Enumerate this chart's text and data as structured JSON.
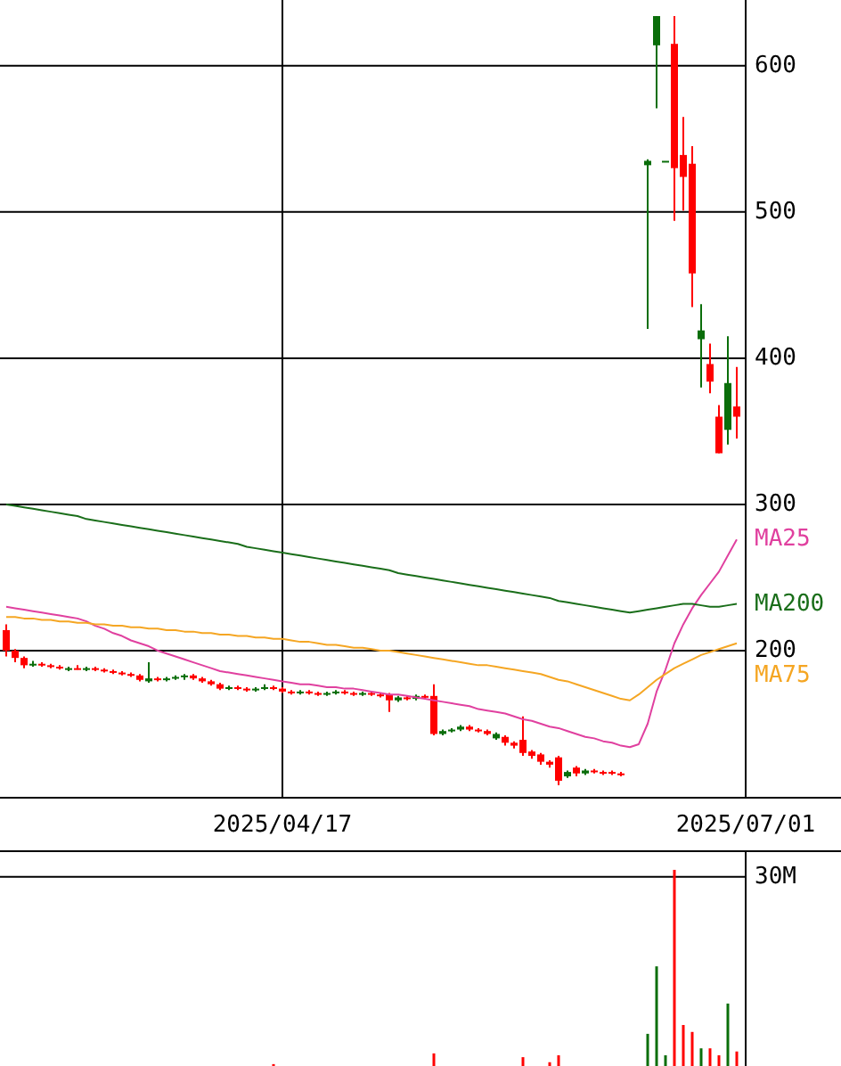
{
  "chart_data": [
    {
      "type": "candlestick",
      "categories": [
        null,
        null,
        null,
        null,
        null,
        null,
        null,
        null,
        null,
        null,
        null,
        null,
        null,
        null,
        null,
        null,
        null,
        null,
        null,
        null,
        null,
        null,
        null,
        null,
        null,
        null,
        null,
        null,
        null,
        null,
        null,
        "2025/04/17",
        null,
        null,
        null,
        null,
        null,
        null,
        null,
        null,
        null,
        null,
        null,
        null,
        null,
        null,
        null,
        null,
        null,
        null,
        null,
        null,
        null,
        null,
        null,
        null,
        null,
        null,
        null,
        null,
        null,
        null,
        null,
        null,
        null,
        null,
        null,
        null,
        null,
        null,
        null,
        null,
        null,
        null,
        null,
        null,
        null,
        null,
        null,
        null,
        null,
        null,
        null,
        "2025/07/01"
      ],
      "ohlc": [
        [
          214,
          218,
          196,
          200
        ],
        [
          200,
          201,
          192,
          195
        ],
        [
          195,
          196,
          188,
          190
        ],
        [
          190,
          193,
          189,
          191
        ],
        [
          191,
          192,
          189,
          190
        ],
        [
          190,
          191,
          188,
          189
        ],
        [
          189,
          190,
          187,
          188
        ],
        [
          187,
          189,
          186,
          188
        ],
        [
          188,
          190,
          187,
          187
        ],
        [
          187,
          189,
          186,
          188
        ],
        [
          188,
          189,
          186,
          187
        ],
        [
          187,
          188,
          185,
          186
        ],
        [
          186,
          187,
          184,
          185
        ],
        [
          185,
          186,
          183,
          184
        ],
        [
          184,
          185,
          182,
          183
        ],
        [
          183,
          184,
          179,
          180
        ],
        [
          179,
          192,
          178,
          181
        ],
        [
          181,
          182,
          179,
          180
        ],
        [
          180,
          182,
          179,
          181
        ],
        [
          181,
          183,
          180,
          182
        ],
        [
          182,
          184,
          180,
          183
        ],
        [
          183,
          184,
          180,
          181
        ],
        [
          181,
          182,
          178,
          179
        ],
        [
          179,
          180,
          176,
          177
        ],
        [
          177,
          178,
          173,
          174
        ],
        [
          174,
          176,
          173,
          175
        ],
        [
          175,
          176,
          173,
          174
        ],
        [
          174,
          175,
          172,
          173
        ],
        [
          173,
          175,
          172,
          174
        ],
        [
          174,
          177,
          173,
          175
        ],
        [
          175,
          176,
          173,
          174
        ],
        [
          174,
          175,
          171,
          172
        ],
        [
          172,
          173,
          170,
          171
        ],
        [
          171,
          173,
          170,
          172
        ],
        [
          172,
          173,
          170,
          171
        ],
        [
          171,
          172,
          169,
          170
        ],
        [
          170,
          172,
          169,
          171
        ],
        [
          171,
          173,
          170,
          172
        ],
        [
          172,
          173,
          170,
          171
        ],
        [
          171,
          172,
          169,
          170
        ],
        [
          170,
          172,
          169,
          171
        ],
        [
          171,
          172,
          169,
          170
        ],
        [
          170,
          171,
          168,
          169
        ],
        [
          170,
          171,
          158,
          166
        ],
        [
          166,
          169,
          165,
          168
        ],
        [
          168,
          169,
          166,
          167
        ],
        [
          167,
          170,
          166,
          169
        ],
        [
          169,
          170,
          167,
          168
        ],
        [
          169,
          177,
          142,
          143
        ],
        [
          143,
          146,
          142,
          145
        ],
        [
          145,
          147,
          144,
          146
        ],
        [
          146,
          149,
          145,
          148
        ],
        [
          148,
          149,
          145,
          146
        ],
        [
          146,
          147,
          144,
          145
        ],
        [
          145,
          146,
          142,
          143
        ],
        [
          140,
          144,
          139,
          143
        ],
        [
          141,
          142,
          135,
          137
        ],
        [
          137,
          138,
          133,
          135
        ],
        [
          139,
          155,
          128,
          130
        ],
        [
          131,
          132,
          126,
          128
        ],
        [
          129,
          130,
          122,
          124
        ],
        [
          124,
          125,
          120,
          122
        ],
        [
          127,
          128,
          108,
          111
        ],
        [
          114,
          118,
          113,
          117
        ],
        [
          120,
          121,
          114,
          116
        ],
        [
          116,
          119,
          115,
          118
        ],
        [
          118,
          119,
          116,
          117
        ],
        [
          117,
          118,
          115,
          116
        ],
        [
          117,
          118,
          115,
          116
        ],
        [
          116,
          117,
          114,
          115
        ],
        null,
        null,
        [
          532,
          536,
          420,
          535
        ],
        [
          614,
          634,
          571,
          634
        ],
        [
          535,
          535,
          535,
          535
        ],
        [
          615,
          634,
          494,
          530
        ],
        [
          539,
          565,
          501,
          524
        ],
        [
          533,
          545,
          435,
          458
        ],
        [
          413,
          437,
          380,
          419
        ],
        [
          396,
          410,
          376,
          384
        ],
        [
          360,
          368,
          335,
          335
        ],
        [
          351,
          415,
          341,
          383
        ],
        [
          367,
          394,
          345,
          360
        ],
        null
      ],
      "colors": [
        "#ff0000",
        "#ff0000",
        "#ff0000",
        "#0a6e0a",
        "#ff0000",
        "#ff0000",
        "#ff0000",
        "#0a6e0a",
        "#ff0000",
        "#0a6e0a",
        "#ff0000",
        "#ff0000",
        "#ff0000",
        "#ff0000",
        "#ff0000",
        "#ff0000",
        "#0a6e0a",
        "#ff0000",
        "#0a6e0a",
        "#0a6e0a",
        "#0a6e0a",
        "#ff0000",
        "#ff0000",
        "#ff0000",
        "#ff0000",
        "#0a6e0a",
        "#ff0000",
        "#ff0000",
        "#0a6e0a",
        "#0a6e0a",
        "#ff0000",
        "#ff0000",
        "#ff0000",
        "#0a6e0a",
        "#ff0000",
        "#ff0000",
        "#0a6e0a",
        "#0a6e0a",
        "#ff0000",
        "#ff0000",
        "#0a6e0a",
        "#ff0000",
        "#ff0000",
        "#ff0000",
        "#0a6e0a",
        "#ff0000",
        "#0a6e0a",
        "#ff0000",
        "#ff0000",
        "#0a6e0a",
        "#0a6e0a",
        "#0a6e0a",
        "#ff0000",
        "#ff0000",
        "#ff0000",
        "#0a6e0a",
        "#ff0000",
        "#ff0000",
        "#ff0000",
        "#ff0000",
        "#ff0000",
        "#ff0000",
        "#ff0000",
        "#0a6e0a",
        "#ff0000",
        "#0a6e0a",
        "#ff0000",
        "#ff0000",
        "#ff0000",
        "#ff0000",
        null,
        null,
        "#0a6e0a",
        "#0a6e0a",
        "#0a6e0a",
        "#ff0000",
        "#ff0000",
        "#ff0000",
        "#0a6e0a",
        "#ff0000",
        "#ff0000",
        "#0a6e0a",
        "#ff0000",
        null
      ],
      "series": [
        {
          "type": "line",
          "name": "MA25",
          "color": "#e0409f",
          "values": [
            230,
            229,
            228,
            227,
            226,
            225,
            224,
            223,
            222,
            220,
            217,
            215,
            212,
            210,
            207,
            205,
            203,
            200,
            198,
            196,
            194,
            192,
            190,
            188,
            186,
            185,
            184,
            183,
            182,
            181,
            180,
            179,
            178,
            177,
            177,
            176,
            175,
            175,
            174,
            174,
            173,
            172,
            171,
            170,
            170,
            169,
            168,
            167,
            166,
            165,
            164,
            163,
            162,
            160,
            159,
            158,
            157,
            155,
            153,
            152,
            150,
            148,
            147,
            145,
            143,
            141,
            140,
            138,
            137,
            135,
            134,
            136,
            150,
            172,
            187,
            205,
            218,
            229,
            238,
            246,
            254,
            265,
            276,
            null
          ]
        },
        {
          "type": "line",
          "name": "MA200",
          "color": "#1a6e1a",
          "values": [
            300,
            299,
            298,
            297,
            296,
            295,
            294,
            293,
            292,
            290,
            289,
            288,
            287,
            286,
            285,
            284,
            283,
            282,
            281,
            280,
            279,
            278,
            277,
            276,
            275,
            274,
            273,
            271,
            270,
            269,
            268,
            267,
            266,
            265,
            264,
            263,
            262,
            261,
            260,
            259,
            258,
            257,
            256,
            255,
            253,
            252,
            251,
            250,
            249,
            248,
            247,
            246,
            245,
            244,
            243,
            242,
            241,
            240,
            239,
            238,
            237,
            236,
            234,
            233,
            232,
            231,
            230,
            229,
            228,
            227,
            226,
            227,
            228,
            229,
            230,
            231,
            232,
            232,
            231,
            230,
            230,
            231,
            232,
            null
          ]
        },
        {
          "type": "line",
          "name": "MA75",
          "color": "#f5a623",
          "values": [
            223,
            223,
            222,
            222,
            221,
            221,
            220,
            220,
            219,
            219,
            218,
            218,
            217,
            217,
            216,
            216,
            215,
            215,
            214,
            214,
            213,
            213,
            212,
            212,
            211,
            211,
            210,
            210,
            209,
            209,
            208,
            208,
            207,
            206,
            206,
            205,
            204,
            204,
            203,
            202,
            202,
            201,
            200,
            200,
            199,
            198,
            197,
            196,
            195,
            194,
            193,
            192,
            191,
            190,
            190,
            189,
            188,
            187,
            186,
            185,
            184,
            182,
            180,
            179,
            177,
            175,
            173,
            171,
            169,
            167,
            166,
            170,
            175,
            180,
            184,
            188,
            191,
            194,
            197,
            199,
            201,
            203,
            205,
            null
          ]
        }
      ],
      "ylim": [
        100,
        645
      ],
      "yticks": [
        200,
        300,
        400,
        500,
        600
      ],
      "grid": true
    },
    {
      "type": "bar",
      "categories": [
        null,
        null,
        null,
        null,
        null,
        null,
        null,
        null,
        null,
        null,
        null,
        null,
        null,
        null,
        null,
        null,
        null,
        null,
        null,
        null,
        null,
        null,
        null,
        null,
        null,
        null,
        null,
        null,
        null,
        null,
        null,
        null,
        null,
        null,
        null,
        null,
        null,
        null,
        null,
        null,
        null,
        null,
        null,
        null,
        null,
        null,
        null,
        null,
        null,
        null,
        null,
        null,
        null,
        null,
        null,
        null,
        null,
        null,
        null,
        null,
        null,
        null,
        null,
        null,
        null,
        null,
        null,
        null,
        null,
        null,
        null,
        null,
        null,
        null,
        null,
        null,
        null,
        null,
        null,
        null,
        null,
        null,
        null,
        null
      ],
      "series": [
        {
          "color": "#0a6e0a",
          "values": [
            null,
            null,
            null,
            null,
            null,
            null,
            null,
            null,
            null,
            null,
            null,
            null,
            null,
            null,
            null,
            null,
            null,
            null,
            null,
            null,
            null,
            null,
            null,
            null,
            null,
            null,
            null,
            null,
            null,
            null,
            null,
            null,
            null,
            null,
            null,
            null,
            null,
            null,
            null,
            null,
            null,
            null,
            null,
            null,
            null,
            null,
            null,
            null,
            null,
            null,
            null,
            null,
            null,
            null,
            null,
            null,
            null,
            null,
            null,
            null,
            null,
            null,
            null,
            null,
            null,
            null,
            null,
            null,
            null,
            null,
            null,
            null,
            5.1,
            15.8,
            1.7,
            null,
            null,
            null,
            2.8,
            null,
            null,
            9.9,
            null,
            null
          ]
        },
        {
          "color": "#ff0000",
          "values": [
            null,
            null,
            null,
            null,
            null,
            null,
            null,
            null,
            null,
            null,
            null,
            null,
            null,
            null,
            null,
            null,
            null,
            null,
            null,
            null,
            null,
            null,
            null,
            null,
            null,
            null,
            null,
            null,
            null,
            null,
            0.3,
            null,
            null,
            null,
            null,
            null,
            null,
            null,
            null,
            null,
            null,
            null,
            null,
            null,
            null,
            null,
            null,
            null,
            2.0,
            null,
            null,
            null,
            null,
            null,
            null,
            null,
            null,
            null,
            1.4,
            null,
            null,
            0.6,
            1.7,
            null,
            null,
            null,
            null,
            null,
            null,
            null,
            null,
            null,
            null,
            null,
            null,
            31.1,
            6.5,
            5.4,
            null,
            2.8,
            1.7,
            null,
            2.3,
            null
          ]
        }
      ],
      "ylim": [
        0,
        34.2
      ],
      "yticks": [
        {
          "value": 30,
          "label": "30M"
        }
      ],
      "grid": "y",
      "tick_labels": "y"
    }
  ]
}
